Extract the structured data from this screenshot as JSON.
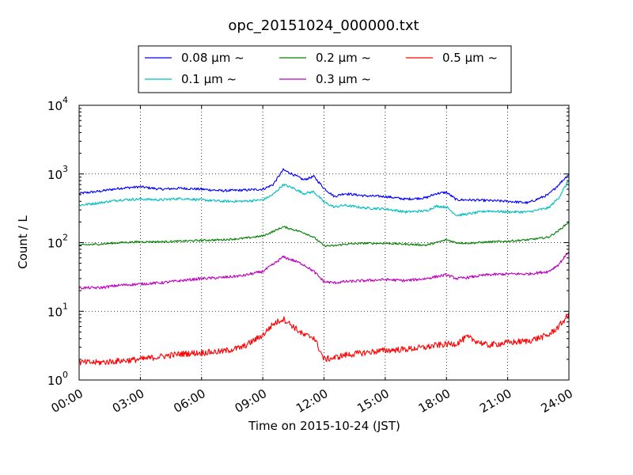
{
  "chart_data": {
    "type": "line",
    "title": "opc_20151024_000000.txt",
    "xlabel": "Time on 2015-10-24 (JST)",
    "ylabel": "Count / L",
    "x_unit": "hours",
    "xlim": [
      0,
      24
    ],
    "ylim": [
      1,
      10000
    ],
    "yscale": "log",
    "grid": true,
    "legend_position": "top",
    "x_ticks": [
      {
        "value": 0,
        "label": "00:00"
      },
      {
        "value": 3,
        "label": "03:00"
      },
      {
        "value": 6,
        "label": "06:00"
      },
      {
        "value": 9,
        "label": "09:00"
      },
      {
        "value": 12,
        "label": "12:00"
      },
      {
        "value": 15,
        "label": "15:00"
      },
      {
        "value": 18,
        "label": "18:00"
      },
      {
        "value": 21,
        "label": "21:00"
      },
      {
        "value": 24,
        "label": "24:00"
      }
    ],
    "y_ticks": [
      {
        "value": 1,
        "mantissa": "10",
        "exponent": "0"
      },
      {
        "value": 10,
        "mantissa": "10",
        "exponent": "1"
      },
      {
        "value": 100,
        "mantissa": "10",
        "exponent": "2"
      },
      {
        "value": 1000,
        "mantissa": "10",
        "exponent": "3"
      },
      {
        "value": 10000,
        "mantissa": "10",
        "exponent": "4"
      }
    ],
    "x": [
      0,
      1,
      2,
      3,
      4,
      5,
      6,
      7,
      8,
      9,
      9.5,
      10,
      10.5,
      11,
      11.5,
      12,
      12.5,
      13,
      14,
      15,
      16,
      17,
      17.5,
      18,
      18.5,
      19,
      20,
      21,
      22,
      23,
      23.5,
      24
    ],
    "series": [
      {
        "name": "0.08 μm ~",
        "color": "#0000ff",
        "values": [
          520,
          560,
          620,
          650,
          600,
          620,
          600,
          570,
          580,
          600,
          700,
          1150,
          980,
          820,
          920,
          620,
          470,
          520,
          480,
          470,
          430,
          450,
          520,
          540,
          420,
          420,
          410,
          400,
          380,
          500,
          700,
          1000
        ]
      },
      {
        "name": "0.1 μm ~",
        "color": "#00bfbf",
        "values": [
          350,
          380,
          420,
          430,
          420,
          440,
          420,
          400,
          400,
          420,
          500,
          700,
          620,
          520,
          550,
          390,
          330,
          350,
          320,
          310,
          280,
          290,
          340,
          330,
          250,
          260,
          290,
          280,
          280,
          320,
          450,
          820
        ]
      },
      {
        "name": "0.2 μm ~",
        "color": "#008000",
        "values": [
          92,
          95,
          100,
          103,
          103,
          105,
          108,
          110,
          115,
          125,
          145,
          170,
          155,
          140,
          120,
          90,
          90,
          95,
          98,
          98,
          95,
          92,
          100,
          110,
          100,
          98,
          102,
          105,
          110,
          120,
          150,
          200
        ]
      },
      {
        "name": "0.3 μm ~",
        "color": "#bf00bf",
        "values": [
          22,
          22,
          24,
          25,
          26,
          28,
          30,
          31,
          33,
          38,
          48,
          62,
          55,
          48,
          38,
          27,
          26,
          27,
          28,
          29,
          28,
          30,
          32,
          34,
          30,
          31,
          34,
          35,
          35,
          38,
          48,
          75
        ]
      },
      {
        "name": "0.5 μm ~",
        "color": "#ff0000",
        "values": [
          1.8,
          1.8,
          1.9,
          2.0,
          2.2,
          2.4,
          2.5,
          2.6,
          3.0,
          4.5,
          6.5,
          7.8,
          6.0,
          4.5,
          4.2,
          2.0,
          2.1,
          2.3,
          2.5,
          2.7,
          2.8,
          3.0,
          3.2,
          3.3,
          3.4,
          4.2,
          3.2,
          3.5,
          3.7,
          4.5,
          6.0,
          9.0
        ]
      }
    ]
  }
}
